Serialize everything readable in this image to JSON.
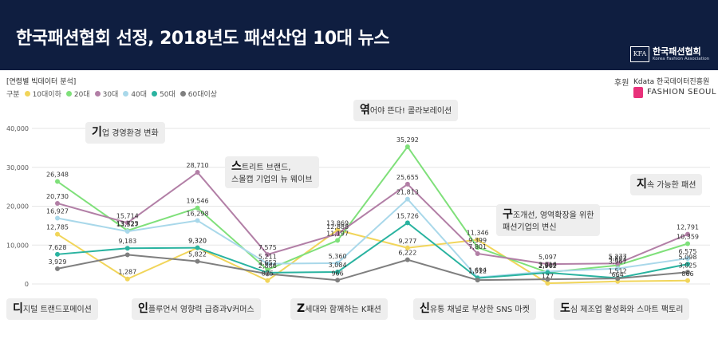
{
  "header": {
    "title": "한국패션협회 선정, 2018년도 패션산업 10대 뉴스",
    "logo_mark": "KFA",
    "org_name": "한국패션협회",
    "org_name_en": "Korea Fashion Association"
  },
  "subhead": "[연령별 빅데이터 분석]",
  "legend_label": "구분",
  "sponsor": {
    "label": "후원",
    "kdata": "Kdata 한국데이터진흥원",
    "fashion_seoul": "FASHION SEOUL"
  },
  "colors": {
    "header_bg": "#0f1e40",
    "series": [
      "#f1d55a",
      "#7fe07a",
      "#b27fa6",
      "#a9d8ea",
      "#2ab3a0",
      "#7f7f7f"
    ]
  },
  "callouts": [
    {
      "initial": "기",
      "rest": "업 경영환경 변화"
    },
    {
      "initial": "스",
      "rest": "트리트 브랜드,",
      "line2": "스몰캡 기업의 뉴 웨이브"
    },
    {
      "initial": "엮",
      "rest": "어야 뜬다! 콜라보레이션"
    },
    {
      "initial": "구",
      "rest": "조개선, 영역확장을 위한",
      "line2": "패션기업의 변신"
    },
    {
      "initial": "지",
      "rest": "속 가능한 패션"
    },
    {
      "initial": "디",
      "rest": "지털 트랜드포메이션"
    },
    {
      "initial": "인",
      "rest": "플루언서 영향력 급증과V커머스"
    },
    {
      "initial": "Z",
      "rest": "세대와 함께하는 K패션"
    },
    {
      "initial": "신",
      "rest": "유통 채널로 부상한 SNS 마켓"
    },
    {
      "initial": "도",
      "rest": "심 제조업 활성화와 스마트 팩토리"
    }
  ],
  "chart_data": {
    "type": "line",
    "categories": [
      "디지털 트랜드포메이션",
      "기업 경영환경 변화",
      "인플루언서 영향력 급증과V커머스",
      "스트리트 브랜드, 스몰캡 기업의 뉴 웨이브",
      "Z세대와 함께하는 K패션",
      "엮어야 뜬다! 콜라보레이션",
      "구조개선, 영역확장을 위한 패션기업의 변신",
      "신유통 채널로 부상한 SNS 마켓",
      "도심 제조업 활성화와 스마트 팩토리",
      "지속 가능한 패션"
    ],
    "y_ticks": [
      "0",
      "10,000",
      "20,000",
      "30,000",
      "40,000"
    ],
    "ylim": [
      0,
      40000
    ],
    "series": [
      {
        "name": "10대이하",
        "values": [
          12785,
          1287,
          9320,
          875,
          13869,
          9277,
          11346,
          177,
          664,
          866
        ],
        "labels": [
          "12,785",
          "1,287",
          "9,320",
          "875",
          "13,869",
          "9,277",
          "11,346",
          "177",
          "664",
          "866"
        ]
      },
      {
        "name": "20대",
        "values": [
          26348,
          13725,
          19546,
          3652,
          11197,
          35292,
          9399,
          2967,
          4802,
          10359
        ],
        "labels": [
          "26,348",
          "13,725",
          "19,546",
          "3,652",
          "11,197",
          "35,292",
          "9,399",
          "2,967",
          "4,802",
          "10,359"
        ]
      },
      {
        "name": "30대",
        "values": [
          20730,
          15714,
          28710,
          7575,
          12888,
          25655,
          7801,
          5097,
          5277,
          12791
        ],
        "labels": [
          "20,730",
          "15,714",
          "28,710",
          "7,575",
          "12,888",
          "25,655",
          "7,801",
          "5,097",
          "5,277",
          "12,791"
        ]
      },
      {
        "name": "40대",
        "values": [
          16927,
          13527,
          16298,
          5211,
          5360,
          21813,
          1694,
          3216,
          3967,
          6575
        ],
        "labels": [
          "16,927",
          "13,527",
          "16,298",
          "5,211",
          "5,360",
          "21,813",
          "1,694",
          "3,216",
          "3,967",
          "6,575"
        ]
      },
      {
        "name": "50대",
        "values": [
          7628,
          9183,
          9320,
          2886,
          3084,
          15726,
          1512,
          2902,
          1512,
          5098
        ],
        "labels": [
          "7,628",
          "9,183",
          "9,320",
          "2,886",
          "3,084",
          "15,726",
          "1,512",
          "2,902",
          "1,512",
          "5,098"
        ]
      },
      {
        "name": "60대이상",
        "values": [
          3929,
          7500,
          5822,
          2600,
          966,
          6222,
          1000,
          1200,
          1400,
          3025
        ],
        "labels": [
          "3,929",
          "",
          "5,822",
          "",
          "966",
          "6,222",
          "",
          "",
          "",
          "3,025"
        ]
      }
    ],
    "legend_position": "top-left",
    "grid": true
  }
}
